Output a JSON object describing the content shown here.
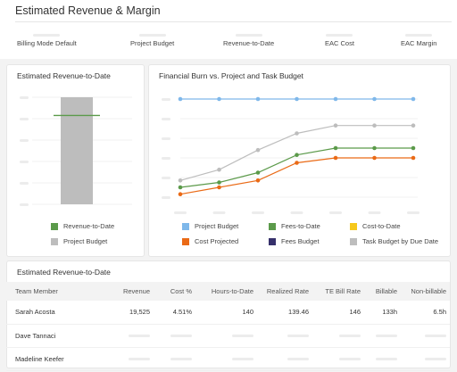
{
  "header": {
    "title": "Estimated Revenue & Margin"
  },
  "metrics": [
    {
      "label": "Billing Mode Default"
    },
    {
      "label": "Project Budget"
    },
    {
      "label": "Revenue-to-Date"
    },
    {
      "label": "EAC Cost"
    },
    {
      "label": "EAC Margin"
    }
  ],
  "revenue_card": {
    "title": "Estimated Revenue-to-Date",
    "legend": [
      {
        "label": "Revenue-to-Date",
        "color": "#5b9a4a"
      },
      {
        "label": "Project Budget",
        "color": "#bdbdbd"
      }
    ]
  },
  "burn_card": {
    "title": "Financial Burn vs. Project and Task Budget",
    "legend": [
      {
        "label": "Project Budget",
        "color": "#7fb8ea"
      },
      {
        "label": "Fees-to-Date",
        "color": "#5b9a4a"
      },
      {
        "label": "Cost-to-Date",
        "color": "#f6c81c"
      },
      {
        "label": "Cost Projected",
        "color": "#ea6a16"
      },
      {
        "label": "Fees Budget",
        "color": "#36306b"
      },
      {
        "label": "Task Budget by Due Date",
        "color": "#bdbdbd"
      }
    ]
  },
  "chart_data": [
    {
      "type": "bar",
      "categories": [
        ""
      ],
      "series": [
        {
          "name": "Project Budget",
          "values": [
            1.0
          ],
          "color": "#bdbdbd"
        },
        {
          "name": "Revenue-to-Date",
          "values": [
            0.83
          ],
          "color": "#5b9a4a"
        }
      ],
      "ylim": [
        0,
        1
      ],
      "grid": true
    },
    {
      "type": "line",
      "x": [
        1,
        2,
        3,
        4,
        5,
        6,
        7
      ],
      "series": [
        {
          "name": "Project Budget",
          "values": [
            1.0,
            1.0,
            1.0,
            1.0,
            1.0,
            1.0,
            1.0
          ],
          "color": "#7fb8ea"
        },
        {
          "name": "Task Budget by Due Date",
          "values": [
            0.17,
            0.28,
            0.48,
            0.65,
            0.73,
            0.73,
            0.73
          ],
          "color": "#bdbdbd"
        },
        {
          "name": "Fees-to-Date",
          "values": [
            0.1,
            0.15,
            0.25,
            0.43,
            0.5,
            0.5,
            0.5
          ],
          "color": "#5b9a4a"
        },
        {
          "name": "Cost Projected",
          "values": [
            0.03,
            0.1,
            0.17,
            0.35,
            0.4,
            0.4,
            0.4
          ],
          "color": "#ea6a16"
        }
      ],
      "ylim": [
        0,
        1
      ],
      "grid": true
    }
  ],
  "team_table": {
    "title": "Estimated Revenue-to-Date",
    "columns": [
      "Team Member",
      "Revenue",
      "Cost %",
      "Hours-to-Date",
      "Realized Rate",
      "TE Bill Rate",
      "Billable",
      "Non-billable"
    ],
    "rows": [
      {
        "name": "Sarah Acosta",
        "cells": [
          "19,525",
          "4.51%",
          "140",
          "139.46",
          "146",
          "133h",
          "6.5h"
        ]
      },
      {
        "name": "Dave Tannaci",
        "cells": []
      },
      {
        "name": "Madeline Keefer",
        "cells": []
      }
    ]
  }
}
